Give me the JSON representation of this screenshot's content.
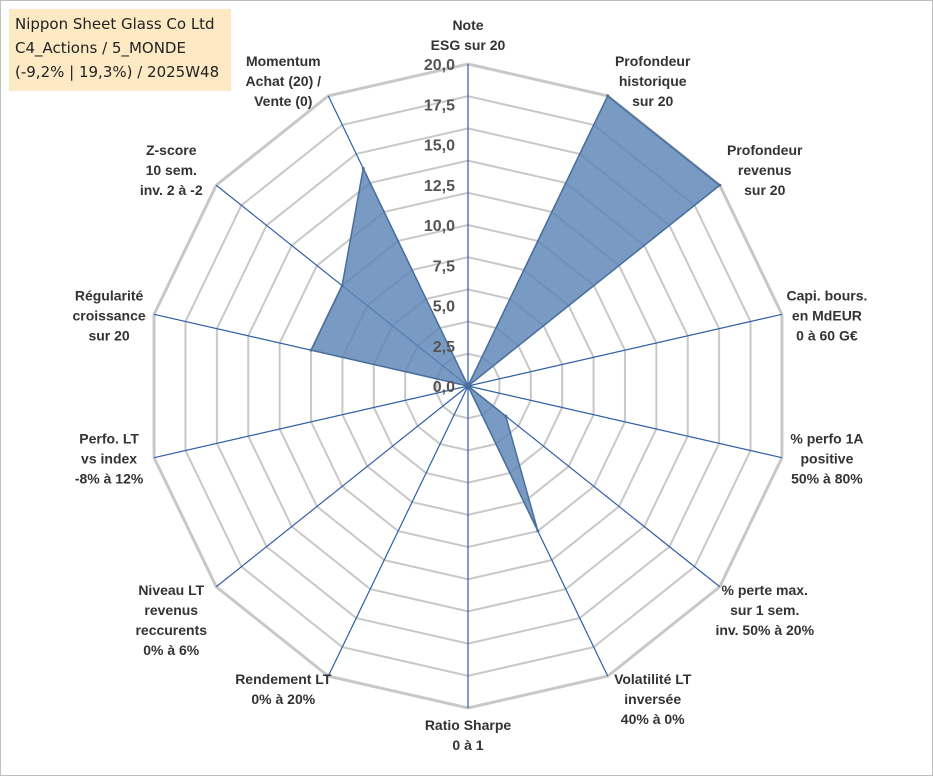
{
  "title_box": {
    "line1": "Nippon Sheet Glass Co Ltd",
    "line2": "C4_Actions / 5_MONDE",
    "line3": "(-9,2% | 19,3%) / 2025W48"
  },
  "colors": {
    "title_box_bg": "#fde9c4",
    "series_fill": "#5b84b5",
    "series_stroke": "#4a6f9c",
    "spoke": "#2e5ea8",
    "grid": "#c8c8c8"
  },
  "chart_data": {
    "type": "radar",
    "ylim": [
      0,
      20
    ],
    "tick_labels": [
      "0,0",
      "2,5",
      "5,0",
      "7,5",
      "10,0",
      "12,5",
      "15,0",
      "17,5",
      "20,0"
    ],
    "grid_levels": 10,
    "legend": "none",
    "axes": [
      {
        "label": [
          "Note",
          "ESG sur 20"
        ]
      },
      {
        "label": [
          "Profondeur",
          "historique",
          "sur 20"
        ]
      },
      {
        "label": [
          "Profondeur",
          "revenus",
          "sur 20"
        ]
      },
      {
        "label": [
          "Capi. bours.",
          "en MdEUR",
          "0 à 60 G€"
        ]
      },
      {
        "label": [
          "% perfo 1A",
          "positive",
          "50% à 80%"
        ]
      },
      {
        "label": [
          "% perte max.",
          "sur 1 sem.",
          "inv. 50% à 20%"
        ]
      },
      {
        "label": [
          "Volatilité LT",
          "inversée",
          "40% à 0%"
        ]
      },
      {
        "label": [
          "Ratio Sharpe",
          "0 à 1"
        ]
      },
      {
        "label": [
          "Rendement LT",
          "0% à 20%"
        ]
      },
      {
        "label": [
          "Niveau LT",
          "revenus",
          "reccurents",
          "0% à 6%"
        ]
      },
      {
        "label": [
          "Perfo. LT",
          "vs index",
          "-8% à 12%"
        ]
      },
      {
        "label": [
          "Régularité",
          "croissance",
          "sur 20"
        ]
      },
      {
        "label": [
          "Z-score",
          "10 sem.",
          "inv. 2 à -2"
        ]
      },
      {
        "label": [
          "Momentum",
          "Achat (20) /",
          "Vente (0)"
        ]
      }
    ],
    "series": [
      {
        "values": [
          0,
          20,
          20,
          0,
          0,
          3,
          10,
          0,
          0,
          0,
          0,
          10,
          10,
          15
        ]
      }
    ]
  }
}
